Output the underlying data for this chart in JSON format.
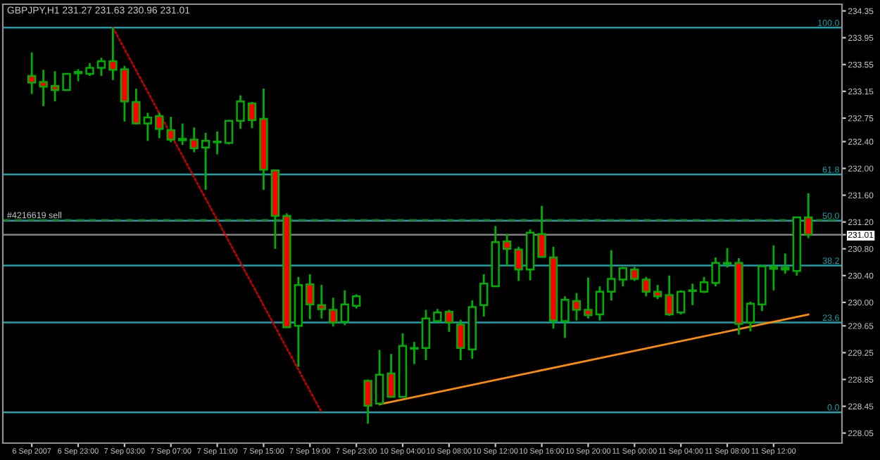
{
  "chart_data": {
    "type": "candlestick",
    "title": "GBPJPY,H1 231.27 231.63 230.96 231.01",
    "categories": [
      "6 Sep 2007",
      null,
      null,
      null,
      "6 Sep 23:00",
      null,
      null,
      null,
      "7 Sep 03:00",
      null,
      null,
      null,
      "7 Sep 07:00",
      null,
      null,
      null,
      "7 Sep 11:00",
      null,
      null,
      null,
      "7 Sep 15:00",
      null,
      null,
      null,
      "7 Sep 19:00",
      null,
      null,
      null,
      "7 Sep 23:00",
      null,
      null,
      null,
      "10 Sep 04:00",
      null,
      null,
      null,
      "10 Sep 08:00",
      null,
      null,
      null,
      "10 Sep 12:00",
      null,
      null,
      null,
      "10 Sep 16:00",
      null,
      null,
      null,
      "10 Sep 20:00",
      null,
      null,
      null,
      "11 Sep 00:00",
      null,
      null,
      null,
      "11 Sep 04:00",
      null,
      null,
      null,
      "11 Sep 08:00",
      null,
      null,
      null,
      "11 Sep 12:00",
      null,
      null,
      null
    ],
    "ohlc": [
      [
        233.38,
        233.73,
        233.11,
        233.28
      ],
      [
        233.29,
        233.47,
        232.93,
        233.22
      ],
      [
        233.23,
        233.45,
        233.0,
        233.17
      ],
      [
        233.17,
        233.42,
        233.16,
        233.41
      ],
      [
        233.42,
        233.48,
        233.3,
        233.44
      ],
      [
        233.41,
        233.57,
        233.38,
        233.5
      ],
      [
        233.5,
        233.65,
        233.38,
        233.6
      ],
      [
        233.6,
        234.1,
        233.32,
        233.47
      ],
      [
        233.48,
        233.53,
        232.7,
        233.0
      ],
      [
        232.99,
        233.19,
        232.66,
        232.67
      ],
      [
        232.67,
        232.83,
        232.41,
        232.76
      ],
      [
        232.78,
        232.83,
        232.45,
        232.59
      ],
      [
        232.57,
        232.77,
        232.39,
        232.43
      ],
      [
        232.42,
        232.67,
        232.35,
        232.44
      ],
      [
        232.43,
        232.61,
        232.24,
        232.3
      ],
      [
        232.31,
        232.53,
        231.68,
        232.41
      ],
      [
        232.39,
        232.55,
        232.21,
        232.4
      ],
      [
        232.38,
        232.72,
        232.36,
        232.71
      ],
      [
        232.71,
        233.09,
        232.59,
        233.0
      ],
      [
        232.97,
        232.99,
        232.6,
        232.72
      ],
      [
        232.74,
        233.19,
        231.68,
        231.98
      ],
      [
        231.97,
        231.98,
        230.8,
        231.29
      ],
      [
        231.29,
        231.33,
        229.62,
        229.63
      ],
      [
        229.65,
        230.38,
        229.04,
        230.26
      ],
      [
        230.27,
        230.42,
        229.75,
        229.97
      ],
      [
        229.96,
        230.26,
        229.76,
        229.9
      ],
      [
        229.89,
        230.07,
        229.64,
        229.7
      ],
      [
        229.71,
        230.18,
        229.66,
        229.97
      ],
      [
        229.95,
        230.12,
        229.91,
        230.09
      ],
      [
        228.83,
        228.85,
        228.19,
        228.46
      ],
      [
        228.49,
        229.29,
        228.47,
        228.92
      ],
      [
        228.94,
        229.23,
        228.58,
        228.59
      ],
      [
        228.59,
        229.54,
        228.58,
        229.35
      ],
      [
        229.31,
        229.41,
        229.08,
        229.32
      ],
      [
        229.32,
        229.89,
        229.14,
        229.76
      ],
      [
        229.72,
        229.9,
        229.71,
        229.85
      ],
      [
        229.86,
        229.89,
        229.56,
        229.7
      ],
      [
        229.67,
        229.74,
        229.14,
        229.32
      ],
      [
        229.3,
        230.03,
        229.16,
        229.93
      ],
      [
        229.96,
        230.42,
        229.79,
        230.28
      ],
      [
        230.24,
        231.14,
        230.23,
        230.9
      ],
      [
        230.91,
        231.02,
        230.54,
        230.8
      ],
      [
        230.79,
        230.83,
        230.32,
        230.49
      ],
      [
        230.49,
        231.09,
        230.33,
        231.04
      ],
      [
        231.02,
        231.44,
        230.67,
        230.68
      ],
      [
        230.67,
        230.83,
        229.61,
        229.73
      ],
      [
        229.72,
        230.09,
        229.47,
        230.04
      ],
      [
        230.02,
        230.14,
        229.73,
        229.89
      ],
      [
        229.89,
        230.37,
        229.76,
        229.81
      ],
      [
        229.82,
        230.24,
        229.73,
        230.16
      ],
      [
        230.16,
        230.78,
        230.03,
        230.35
      ],
      [
        230.34,
        230.53,
        230.24,
        230.51
      ],
      [
        230.49,
        230.53,
        230.32,
        230.35
      ],
      [
        230.34,
        230.38,
        230.09,
        230.16
      ],
      [
        230.16,
        230.26,
        230.05,
        230.09
      ],
      [
        230.11,
        230.4,
        229.8,
        229.82
      ],
      [
        229.85,
        230.18,
        229.82,
        230.16
      ],
      [
        230.17,
        230.28,
        229.96,
        230.18
      ],
      [
        230.16,
        230.38,
        230.14,
        230.3
      ],
      [
        230.29,
        230.67,
        230.24,
        230.59
      ],
      [
        230.58,
        230.81,
        230.52,
        230.59
      ],
      [
        230.59,
        230.66,
        229.52,
        229.68
      ],
      [
        229.7,
        230.01,
        229.57,
        229.98
      ],
      [
        229.97,
        230.55,
        229.87,
        230.54
      ],
      [
        230.53,
        230.85,
        230.18,
        230.5
      ],
      [
        230.52,
        230.73,
        230.43,
        230.49
      ],
      [
        230.47,
        231.28,
        230.4,
        231.27
      ],
      [
        231.27,
        231.63,
        230.96,
        231.01
      ]
    ],
    "series": [
      {
        "type": "line",
        "color": "#ff8c00",
        "line_style": "solid",
        "values": [
          null,
          null,
          null,
          null,
          null,
          null,
          null,
          null,
          null,
          null,
          null,
          null,
          null,
          null,
          null,
          null,
          null,
          null,
          null,
          null,
          null,
          null,
          null,
          null,
          null,
          null,
          null,
          null,
          null,
          null,
          228.48,
          null,
          null,
          null,
          null,
          null,
          null,
          null,
          null,
          null,
          null,
          null,
          null,
          null,
          null,
          null,
          null,
          null,
          null,
          null,
          null,
          null,
          null,
          null,
          null,
          null,
          null,
          null,
          null,
          null,
          null,
          null,
          null,
          null,
          null,
          null,
          null,
          229.82
        ]
      },
      {
        "type": "line",
        "color": "#c00000",
        "line_style": "dotted",
        "values": [
          null,
          null,
          null,
          null,
          null,
          null,
          null,
          234.1,
          null,
          null,
          null,
          null,
          null,
          null,
          null,
          null,
          null,
          null,
          null,
          null,
          null,
          null,
          null,
          null,
          null,
          228.36,
          null,
          null,
          null,
          null,
          null,
          null,
          null,
          null,
          null,
          null,
          null,
          null,
          null,
          null,
          null,
          null,
          null,
          null,
          null,
          null,
          null,
          null,
          null,
          null,
          null,
          null,
          null,
          null,
          null,
          null,
          null,
          null,
          null,
          null,
          null,
          null,
          null,
          null,
          null,
          null,
          null,
          null
        ]
      }
    ],
    "ylim": [
      227.9,
      234.45
    ],
    "yticks": [
      234.35,
      233.95,
      233.55,
      233.15,
      232.75,
      {
        "value": 232.4,
        "label": "232.40"
      },
      {
        "value": 232.0,
        "label": "232.00"
      },
      {
        "value": 231.6,
        "label": "231.60"
      },
      {
        "value": 231.2,
        "label": "231.20"
      },
      {
        "value": 231.01,
        "label": "231.01"
      },
      {
        "value": 230.8,
        "label": "230.80"
      },
      {
        "value": 230.4,
        "label": "230.40"
      },
      {
        "value": 230.0,
        "label": "230.00"
      },
      229.65,
      229.25,
      228.85,
      228.45,
      228.05
    ],
    "ref_lines": [
      {
        "axis": "y",
        "value": 234.1,
        "color": "#1aa0a8",
        "line_style": "solid"
      },
      {
        "axis": "y",
        "value": 231.91,
        "color": "#1aa0a8",
        "line_style": "solid"
      },
      {
        "axis": "y",
        "value": 231.22,
        "color": "#1aa0a8",
        "line_style": "solid"
      },
      {
        "axis": "y",
        "value": 230.55,
        "color": "#1aa0a8",
        "line_style": "solid"
      },
      {
        "axis": "y",
        "value": 229.7,
        "color": "#1aa0a8",
        "line_style": "solid"
      },
      {
        "axis": "y",
        "value": 228.36,
        "color": "#1aa0a8",
        "line_style": "solid"
      },
      {
        "axis": "y",
        "value": 231.23,
        "label": "#4216619 sell",
        "color": "#1f7a1f",
        "line_style": "dashed"
      },
      {
        "axis": "y",
        "value": 231.01,
        "color": "#808080",
        "line_style": "solid"
      }
    ],
    "annotations": [
      {
        "text": "100.0",
        "y": 234.1
      },
      {
        "text": "61.8",
        "y": 231.91
      },
      {
        "text": "50.0",
        "y": 231.22
      },
      {
        "text": "38.2",
        "y": 230.55
      },
      {
        "text": "23.6",
        "y": 229.7
      },
      {
        "text": "0.0",
        "y": 228.36
      }
    ],
    "grid": false
  }
}
